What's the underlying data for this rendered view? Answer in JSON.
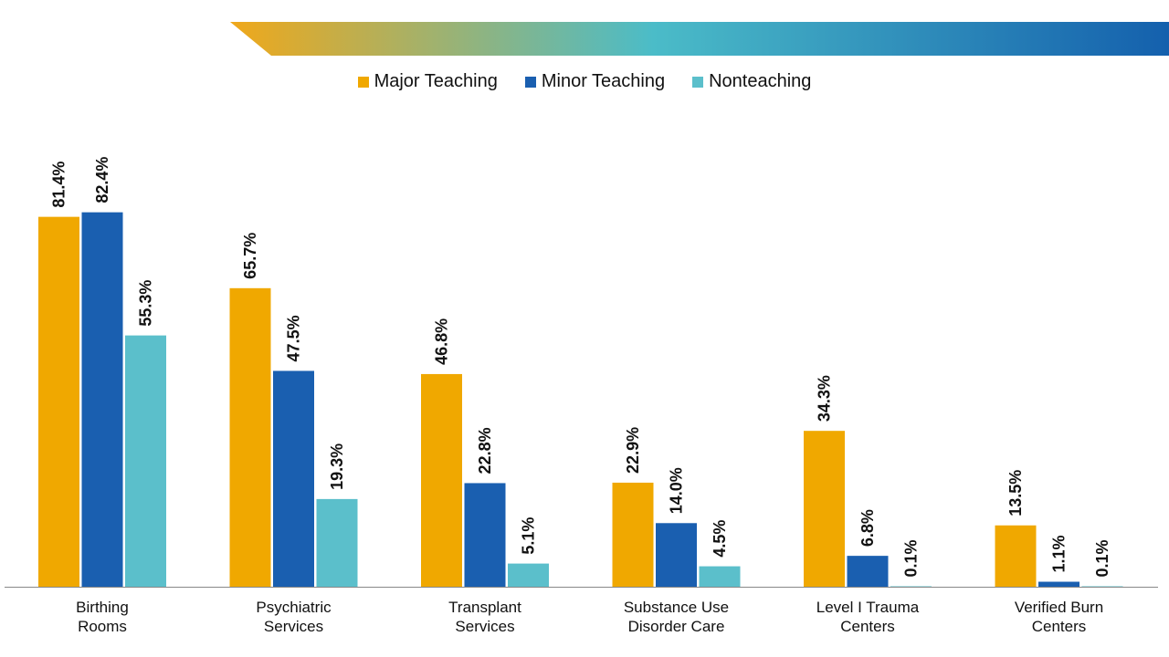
{
  "colors": {
    "banner_start": "#f0a81a",
    "banner_mid": "#4bbcc8",
    "banner_end": "#1460ad"
  },
  "chart_data": {
    "type": "bar",
    "title": "",
    "xlabel": "",
    "ylabel": "",
    "ylim": [
      0,
      90
    ],
    "grid": false,
    "legend_position": "top-center",
    "categories": [
      [
        "Birthing",
        "Rooms"
      ],
      [
        "Psychiatric",
        "Services"
      ],
      [
        "Transplant",
        "Services"
      ],
      [
        "Substance Use",
        "Disorder Care"
      ],
      [
        "Level I Trauma",
        "Centers"
      ],
      [
        "Verified Burn",
        "Centers"
      ]
    ],
    "series": [
      {
        "name": "Major Teaching",
        "color": "#f0a800",
        "values": [
          81.4,
          65.7,
          46.8,
          22.9,
          34.3,
          13.5
        ]
      },
      {
        "name": "Minor Teaching",
        "color": "#1a5fb0",
        "values": [
          82.4,
          47.5,
          22.8,
          14.0,
          6.8,
          1.1
        ]
      },
      {
        "name": "Nonteaching",
        "color": "#5bbfcb",
        "values": [
          55.3,
          19.3,
          5.1,
          4.5,
          0.1,
          0.1
        ]
      }
    ]
  }
}
